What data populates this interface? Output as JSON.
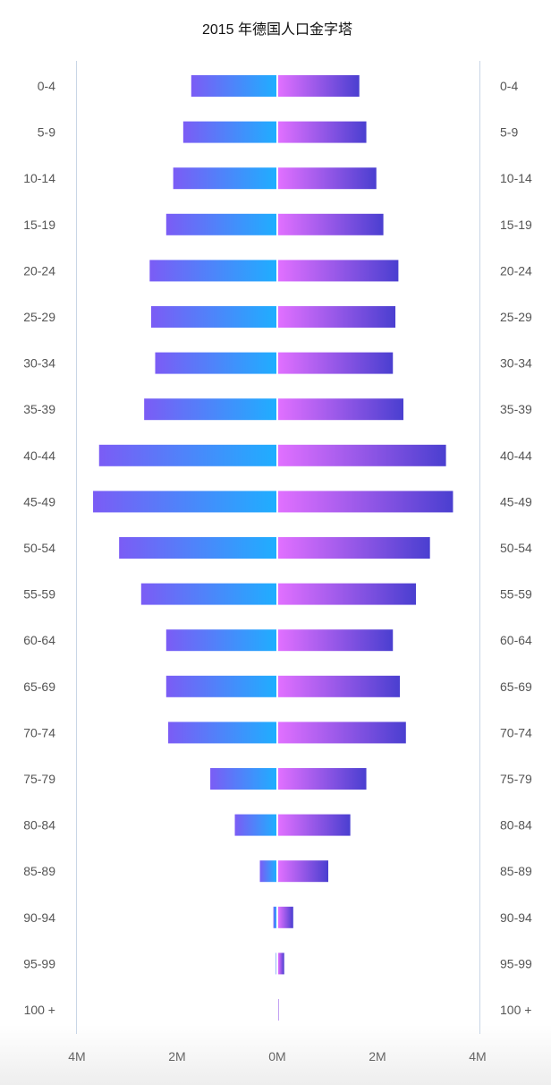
{
  "chart_data": {
    "type": "bar",
    "title": "2015 年德国人口金字塔",
    "categories": [
      "0-4",
      "5-9",
      "10-14",
      "15-19",
      "20-24",
      "25-29",
      "30-34",
      "35-39",
      "40-44",
      "45-49",
      "50-54",
      "55-59",
      "60-64",
      "65-69",
      "70-74",
      "75-79",
      "80-84",
      "85-89",
      "90-94",
      "95-99",
      "100 +"
    ],
    "series": [
      {
        "values": [
          1.7,
          1.86,
          2.06,
          2.2,
          2.53,
          2.5,
          2.42,
          2.64,
          3.54,
          3.66,
          3.14,
          2.7,
          2.2,
          2.2,
          2.16,
          1.32,
          0.83,
          0.33,
          0.06,
          0.01,
          0.0
        ]
      },
      {
        "values": [
          1.62,
          1.76,
          1.96,
          2.1,
          2.4,
          2.34,
          2.29,
          2.5,
          3.35,
          3.49,
          3.03,
          2.75,
          2.29,
          2.43,
          2.55,
          1.76,
          1.44,
          1.0,
          0.3,
          0.12,
          0.01
        ]
      }
    ],
    "xticks": [
      "4M",
      "2M",
      "0M",
      "2M",
      "4M"
    ],
    "xlim": [
      -4,
      4
    ],
    "unit": "M",
    "grid": false,
    "legend": "none",
    "colors": {
      "left_start": "#7b5cf5",
      "left_end": "#1faeff",
      "right_start": "#e170ff",
      "right_end": "#4a3fd0",
      "axis": "#c9d6e6",
      "label": "#555555"
    }
  }
}
